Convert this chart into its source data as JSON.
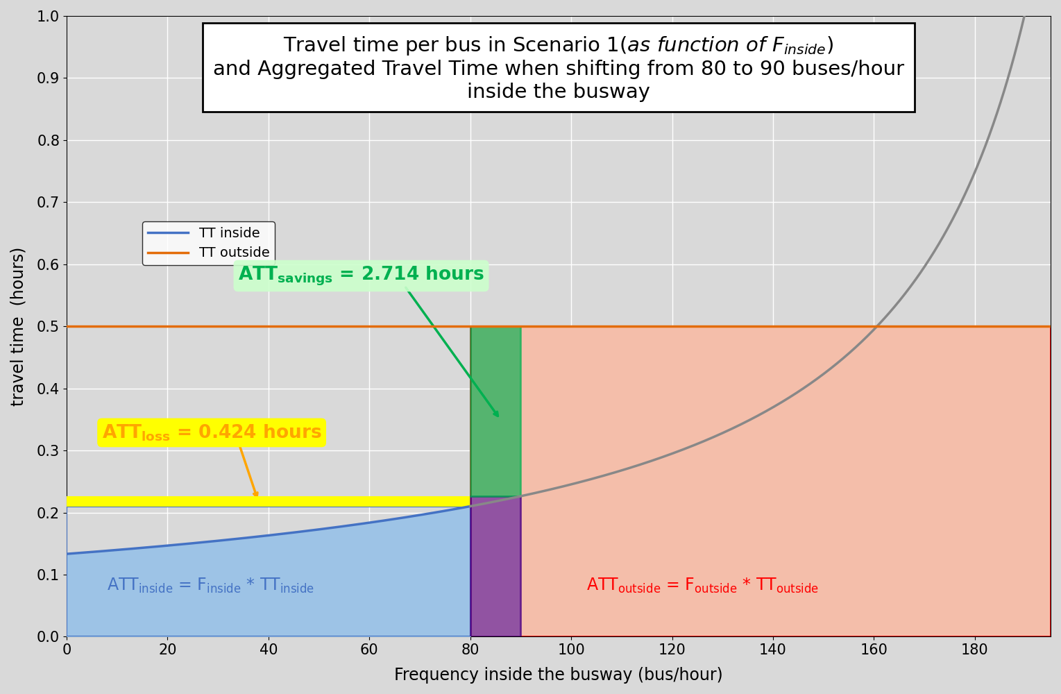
{
  "xlabel": "Frequency inside the busway (bus/hour)",
  "ylabel": "travel time  (hours)",
  "xlim": [
    0,
    195
  ],
  "ylim": [
    0,
    1.0
  ],
  "xticks": [
    0,
    20,
    40,
    60,
    80,
    100,
    120,
    140,
    160,
    180
  ],
  "yticks": [
    0.0,
    0.1,
    0.2,
    0.3,
    0.4,
    0.5,
    0.6,
    0.7,
    0.8,
    0.9,
    1.0
  ],
  "tt_outside": 0.5,
  "F_max": 195,
  "F_switch": 80,
  "F_new": 90,
  "tt_a": 29.2,
  "tt_b": 219.0,
  "color_tt_inside_line": "#4472C4",
  "color_tt_inside_line_gray": "#888888",
  "color_tt_outside_line": "#E36C09",
  "color_att_inside_fill": "#9DC3E6",
  "color_yellow_rect": "#FFFF00",
  "color_green_rect": "#00B050",
  "color_purple_rect": "#7030A0",
  "color_orange_fill": "#F4BEAA",
  "color_att_inside_text": "#4472C4",
  "color_att_outside_text": "#FF0000",
  "color_att_savings_text": "#00B050",
  "color_att_loss_text": "#FFA500",
  "legend_tt_inside": "TT inside",
  "legend_tt_outside": "TT outside",
  "background_color": "#D9D9D9",
  "plot_bg_color": "#D9D9D9"
}
